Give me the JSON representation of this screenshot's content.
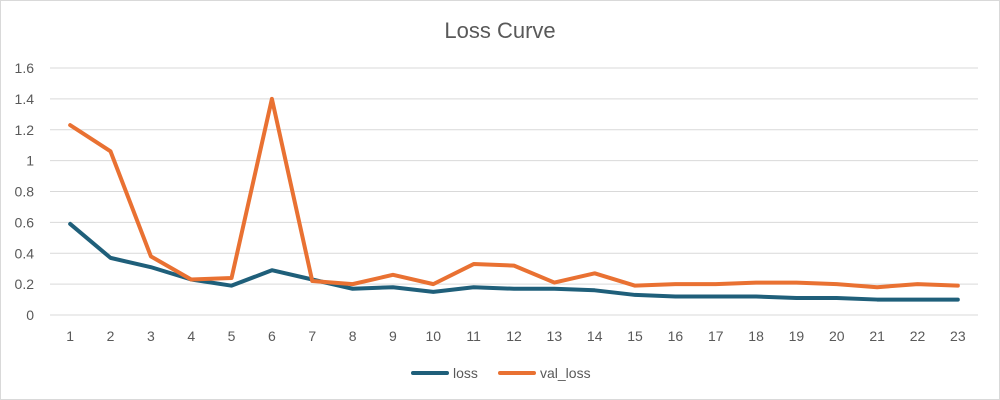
{
  "chart_data": {
    "type": "line",
    "title": "Loss Curve",
    "xlabel": "",
    "ylabel": "",
    "x": [
      1,
      2,
      3,
      4,
      5,
      6,
      7,
      8,
      9,
      10,
      11,
      12,
      13,
      14,
      15,
      16,
      17,
      18,
      19,
      20,
      21,
      22,
      23
    ],
    "ylim": [
      0,
      1.6
    ],
    "yticks": [
      "0",
      "0.2",
      "0.4",
      "0.6",
      "0.8",
      "1",
      "1.2",
      "1.4",
      "1.6"
    ],
    "grid": "horizontal",
    "legend": "bottom",
    "series": [
      {
        "name": "loss",
        "color": "#1f5f7a",
        "values": [
          0.59,
          0.37,
          0.31,
          0.23,
          0.19,
          0.29,
          0.23,
          0.17,
          0.18,
          0.15,
          0.18,
          0.17,
          0.17,
          0.16,
          0.13,
          0.12,
          0.12,
          0.12,
          0.11,
          0.11,
          0.1,
          0.1,
          0.1
        ]
      },
      {
        "name": "val_loss",
        "color": "#e97132",
        "values": [
          1.23,
          1.06,
          0.38,
          0.23,
          0.24,
          1.4,
          0.22,
          0.2,
          0.26,
          0.2,
          0.33,
          0.32,
          0.21,
          0.27,
          0.19,
          0.2,
          0.2,
          0.21,
          0.21,
          0.2,
          0.18,
          0.2,
          0.19
        ]
      }
    ]
  }
}
